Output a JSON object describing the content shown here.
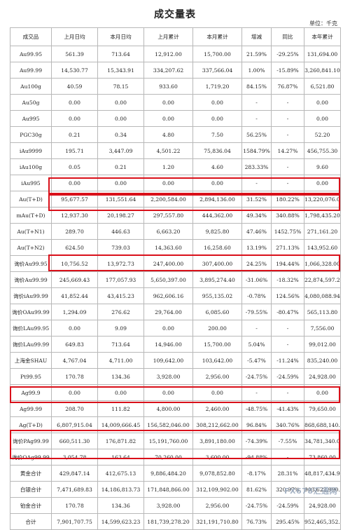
{
  "page": {
    "title": "成交量表",
    "unit": "单位：千克",
    "watermark": "FX678汇通网",
    "highlight_color": "#d9101a"
  },
  "table": {
    "headers": [
      "成交品",
      "上月日均",
      "本月日均",
      "上月累计",
      "本月累计",
      "增减",
      "同比",
      "本年累计"
    ],
    "rows": [
      [
        "Au99.95",
        "561.39",
        "713.64",
        "12,912.00",
        "15,700.00",
        "21.59%",
        "-29.25%",
        "131,694.00"
      ],
      [
        "Au99.99",
        "14,530.77",
        "15,343.91",
        "334,207.62",
        "337,566.04",
        "1.00%",
        "-15.89%",
        "3,260,841.10"
      ],
      [
        "Au100g",
        "40.59",
        "78.15",
        "933.60",
        "1,719.20",
        "84.15%",
        "76.87%",
        "6,521.80"
      ],
      [
        "Au50g",
        "0.00",
        "0.00",
        "0.00",
        "0.00",
        "-",
        "-",
        "0.00"
      ],
      [
        "Au995",
        "0.00",
        "0.00",
        "0.00",
        "0.00",
        "-",
        "-",
        "0.00"
      ],
      [
        "PGC30g",
        "0.21",
        "0.34",
        "4.80",
        "7.50",
        "56.25%",
        "-",
        "52.20"
      ],
      [
        "iAu9999",
        "195.71",
        "3,447.09",
        "4,501.22",
        "75,836.04",
        "1584.79%",
        "14.27%",
        "456,755.30"
      ],
      [
        "iAu100g",
        "0.05",
        "0.21",
        "1.20",
        "4.60",
        "283.33%",
        "-",
        "9.60"
      ],
      [
        "iAu995",
        "0.00",
        "0.00",
        "0.00",
        "0.00",
        "-",
        "-",
        "0.00"
      ],
      [
        "Au(T+D)",
        "95,677.57",
        "131,551.64",
        "2,200,584.00",
        "2,894,136.00",
        "31.52%",
        "180.22%",
        "13,220,076.00"
      ],
      [
        "mAu(T+D)",
        "12,937.30",
        "20,198.27",
        "297,557.80",
        "444,362.00",
        "49.34%",
        "340.88%",
        "1,798,435.20"
      ],
      [
        "Au(T+N1)",
        "289.70",
        "446.63",
        "6,663.20",
        "9,825.80",
        "47.46%",
        "1452.75%",
        "271,161.20"
      ],
      [
        "Au(T+N2)",
        "624.50",
        "739.03",
        "14,363.60",
        "16,258.60",
        "13.19%",
        "271.13%",
        "143,952.60"
      ],
      [
        "询价Au99.95",
        "10,756.52",
        "13,972.73",
        "247,400.00",
        "307,400.00",
        "24.25%",
        "194.44%",
        "1,066,328.00"
      ],
      [
        "询价Au99.99",
        "245,669.43",
        "177,057.93",
        "5,650,397.00",
        "3,895,274.40",
        "-31.06%",
        "-18.32%",
        "22,874,597.20"
      ],
      [
        "询价iAu99.99",
        "41,852.44",
        "43,415.23",
        "962,606.16",
        "955,135.02",
        "-0.78%",
        "124.56%",
        "4,080,088.94"
      ],
      [
        "询价OAu99.99",
        "1,294.09",
        "276.62",
        "29,764.00",
        "6,085.60",
        "-79.55%",
        "-80.47%",
        "565,113.80"
      ],
      [
        "询价LAu99.95",
        "0.00",
        "9.09",
        "0.00",
        "200.00",
        "-",
        "-",
        "7,556.00"
      ],
      [
        "询价LAu99.99",
        "649.83",
        "713.64",
        "14,946.00",
        "15,700.00",
        "5.04%",
        "-",
        "99,012.00"
      ],
      [
        "上海金SHAU",
        "4,767.04",
        "4,711.00",
        "109,642.00",
        "103,642.00",
        "-5.47%",
        "-11.24%",
        "835,240.00"
      ],
      [
        "Pt99.95",
        "170.78",
        "134.36",
        "3,928.00",
        "2,956.00",
        "-24.75%",
        "-24.59%",
        "24,928.00"
      ],
      [
        "Ag99.9",
        "0.00",
        "0.00",
        "0.00",
        "0.00",
        "-",
        "-",
        "0.00"
      ],
      [
        "Ag99.99",
        "208.70",
        "111.82",
        "4,800.00",
        "2,460.00",
        "-48.75%",
        "-41.43%",
        "79,650.00"
      ],
      [
        "Ag(T+D)",
        "6,807,915.04",
        "14,009,666.45",
        "156,582,046.00",
        "308,212,662.00",
        "96.84%",
        "340.76%",
        "868,688,140.00"
      ],
      [
        "询价PAg99.99",
        "660,511.30",
        "176,871.82",
        "15,191,760.00",
        "3,891,180.00",
        "-74.39%",
        "-7.55%",
        "34,781,340.00"
      ],
      [
        "询价OAg99.99",
        "3,054.78",
        "163.64",
        "70,260.00",
        "3,600.00",
        "-94.88%",
        "-",
        "73,860.00"
      ],
      [
        "黄金合计",
        "429,847.14",
        "412,675.13",
        "9,886,484.20",
        "9,078,852.80",
        "-8.17%",
        "28.31%",
        "48,817,434.94"
      ],
      [
        "白银合计",
        "7,471,689.83",
        "14,186,813.73",
        "171,848,866.00",
        "312,109,902.00",
        "81.62%",
        "320.97%",
        "903,622,990.00"
      ],
      [
        "铂金合计",
        "170.78",
        "134.36",
        "3,928.00",
        "2,956.00",
        "-24.75%",
        "-24.59%",
        "24,928.00"
      ],
      [
        "合计",
        "7,901,707.75",
        "14,599,623.23",
        "181,739,278.20",
        "321,191,710.80",
        "76.73%",
        "295.45%",
        "952,465,352.94"
      ]
    ]
  }
}
